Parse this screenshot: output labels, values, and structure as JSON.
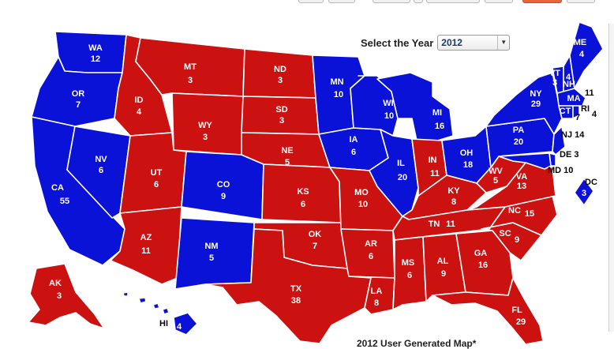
{
  "controls": {
    "year_label": "Select the Year",
    "year_value": "2012"
  },
  "caption": "2012 User Generated Map*",
  "colors": {
    "red": "#cc1111",
    "blue": "#0a12d8",
    "white_border": "#ffffff"
  },
  "states": {
    "WA": "12",
    "OR": "7",
    "CA": "55",
    "NV": "6",
    "ID": "4",
    "MT": "3",
    "WY": "3",
    "UT": "6",
    "AZ": "11",
    "CO": "9",
    "NM": "5",
    "ND": "3",
    "SD": "3",
    "NE": "5",
    "KS": "6",
    "OK": "7",
    "TX": "38",
    "MN": "10",
    "IA": "6",
    "MO": "10",
    "AR": "6",
    "LA": "8",
    "WI": "10",
    "IL": "20",
    "MI": "16",
    "IN": "11",
    "OH": "18",
    "KY": "8",
    "TN": "11",
    "MS": "6",
    "AL": "9",
    "GA": "16",
    "FL": "29",
    "SC": "9",
    "NC": "15",
    "VA": "13",
    "WV": "5",
    "PA": "20",
    "NY": "29",
    "VT": "3",
    "NH": "4",
    "ME": "4",
    "MA": "11",
    "RI": "4",
    "CT": "7",
    "NJ": "14",
    "DE": "3",
    "MD": "10",
    "DC": "3",
    "AK": "3",
    "HI": "4"
  },
  "winners": {
    "blue": [
      "WA",
      "OR",
      "CA",
      "NV",
      "NM",
      "CO",
      "MN",
      "IA",
      "WI",
      "IL",
      "MI",
      "OH",
      "PA",
      "NY",
      "VT",
      "NH",
      "ME",
      "MA",
      "RI",
      "CT",
      "NJ",
      "DE",
      "MD",
      "DC",
      "HI"
    ],
    "red": [
      "ID",
      "MT",
      "WY",
      "UT",
      "AZ",
      "ND",
      "SD",
      "NE",
      "KS",
      "OK",
      "TX",
      "MO",
      "AR",
      "LA",
      "IN",
      "KY",
      "TN",
      "MS",
      "AL",
      "GA",
      "FL",
      "SC",
      "NC",
      "VA",
      "WV",
      "AK"
    ]
  }
}
